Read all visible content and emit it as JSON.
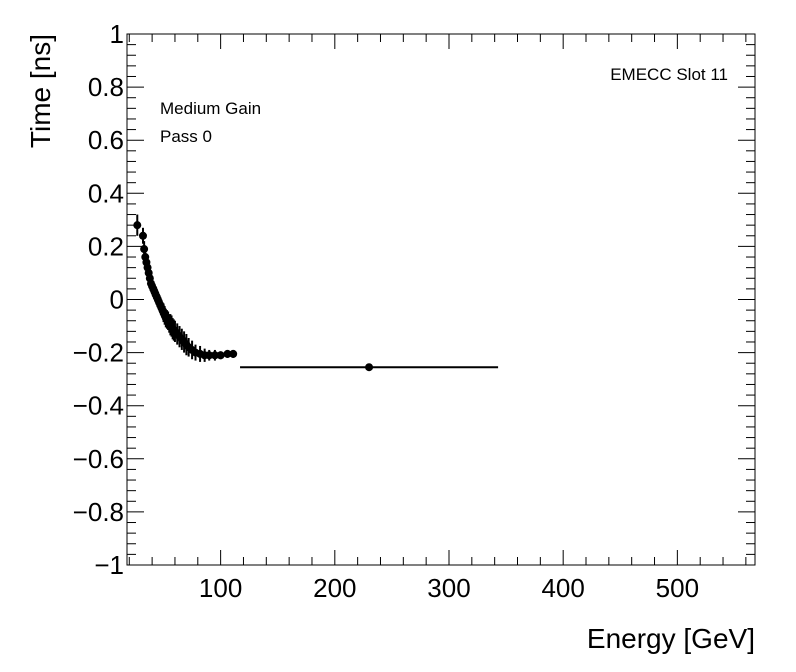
{
  "chart_data": {
    "type": "scatter",
    "xlabel": "Energy [GeV]",
    "ylabel": "Time [ns]",
    "xlim": [
      18,
      568
    ],
    "ylim": [
      -1,
      1
    ],
    "x_ticks": [
      100,
      200,
      300,
      400,
      500
    ],
    "x_tick_labels": [
      "100",
      "200",
      "300",
      "400",
      "500"
    ],
    "y_ticks": [
      -1,
      -0.8,
      -0.6,
      -0.4,
      -0.2,
      0,
      0.2,
      0.4,
      0.6,
      0.8,
      1
    ],
    "y_tick_labels": [
      "−1",
      "−0.8",
      "−0.6",
      "−0.4",
      "−0.2",
      "0",
      "0.2",
      "0.4",
      "0.6",
      "0.8",
      "1"
    ],
    "grid": false,
    "annotations": {
      "slot": "EMECC Slot 11",
      "gain": "Medium Gain",
      "pass": "Pass 0"
    },
    "series": [
      {
        "points": [
          {
            "x": 27,
            "y": 0.28,
            "yerr": 0.04,
            "xerr": 1
          },
          {
            "x": 32,
            "y": 0.24,
            "yerr": 0.03,
            "xerr": 1
          },
          {
            "x": 33,
            "y": 0.19,
            "yerr": 0.03,
            "xerr": 1
          },
          {
            "x": 34,
            "y": 0.16,
            "yerr": 0.03,
            "xerr": 1
          },
          {
            "x": 35,
            "y": 0.14,
            "yerr": 0.03,
            "xerr": 1
          },
          {
            "x": 36,
            "y": 0.12,
            "yerr": 0.03,
            "xerr": 1
          },
          {
            "x": 37,
            "y": 0.1,
            "yerr": 0.03,
            "xerr": 1
          },
          {
            "x": 38,
            "y": 0.08,
            "yerr": 0.03,
            "xerr": 1
          },
          {
            "x": 39,
            "y": 0.06,
            "yerr": 0.03,
            "xerr": 1
          },
          {
            "x": 40,
            "y": 0.05,
            "yerr": 0.03,
            "xerr": 1
          },
          {
            "x": 41,
            "y": 0.04,
            "yerr": 0.03,
            "xerr": 1
          },
          {
            "x": 42,
            "y": 0.03,
            "yerr": 0.03,
            "xerr": 1
          },
          {
            "x": 43,
            "y": 0.02,
            "yerr": 0.03,
            "xerr": 1
          },
          {
            "x": 44,
            "y": 0.01,
            "yerr": 0.03,
            "xerr": 1
          },
          {
            "x": 45,
            "y": 0.0,
            "yerr": 0.03,
            "xerr": 1
          },
          {
            "x": 46,
            "y": -0.01,
            "yerr": 0.03,
            "xerr": 1
          },
          {
            "x": 47,
            "y": -0.02,
            "yerr": 0.03,
            "xerr": 1
          },
          {
            "x": 48,
            "y": -0.03,
            "yerr": 0.03,
            "xerr": 1
          },
          {
            "x": 49,
            "y": -0.04,
            "yerr": 0.03,
            "xerr": 1
          },
          {
            "x": 50,
            "y": -0.05,
            "yerr": 0.035,
            "xerr": 1
          },
          {
            "x": 51,
            "y": -0.06,
            "yerr": 0.035,
            "xerr": 1
          },
          {
            "x": 52,
            "y": -0.07,
            "yerr": 0.035,
            "xerr": 1
          },
          {
            "x": 53,
            "y": -0.075,
            "yerr": 0.035,
            "xerr": 1
          },
          {
            "x": 54,
            "y": -0.08,
            "yerr": 0.035,
            "xerr": 1
          },
          {
            "x": 55,
            "y": -0.09,
            "yerr": 0.035,
            "xerr": 1
          },
          {
            "x": 56,
            "y": -0.095,
            "yerr": 0.04,
            "xerr": 1
          },
          {
            "x": 57,
            "y": -0.1,
            "yerr": 0.04,
            "xerr": 1
          },
          {
            "x": 58,
            "y": -0.11,
            "yerr": 0.04,
            "xerr": 1
          },
          {
            "x": 59,
            "y": -0.115,
            "yerr": 0.04,
            "xerr": 1
          },
          {
            "x": 60,
            "y": -0.12,
            "yerr": 0.04,
            "xerr": 1
          },
          {
            "x": 62,
            "y": -0.13,
            "yerr": 0.04,
            "xerr": 1
          },
          {
            "x": 64,
            "y": -0.14,
            "yerr": 0.04,
            "xerr": 1
          },
          {
            "x": 66,
            "y": -0.15,
            "yerr": 0.04,
            "xerr": 1
          },
          {
            "x": 68,
            "y": -0.16,
            "yerr": 0.04,
            "xerr": 1
          },
          {
            "x": 70,
            "y": -0.17,
            "yerr": 0.04,
            "xerr": 1
          },
          {
            "x": 72,
            "y": -0.18,
            "yerr": 0.035,
            "xerr": 1
          },
          {
            "x": 75,
            "y": -0.19,
            "yerr": 0.035,
            "xerr": 1
          },
          {
            "x": 78,
            "y": -0.2,
            "yerr": 0.03,
            "xerr": 1
          },
          {
            "x": 82,
            "y": -0.205,
            "yerr": 0.03,
            "xerr": 1
          },
          {
            "x": 86,
            "y": -0.21,
            "yerr": 0.025,
            "xerr": 1
          },
          {
            "x": 90,
            "y": -0.21,
            "yerr": 0.02,
            "xerr": 1
          },
          {
            "x": 95,
            "y": -0.21,
            "yerr": 0.02,
            "xerr": 1
          },
          {
            "x": 100,
            "y": -0.21,
            "yerr": 0.015,
            "xerr": 1
          },
          {
            "x": 106,
            "y": -0.205,
            "yerr": 0.015,
            "xerr": 1
          },
          {
            "x": 111,
            "y": -0.205,
            "yerr": 0.015,
            "xerr": 3
          },
          {
            "x": 230,
            "y": -0.255,
            "yerr": 0.005,
            "xerr": 113
          }
        ]
      }
    ]
  }
}
